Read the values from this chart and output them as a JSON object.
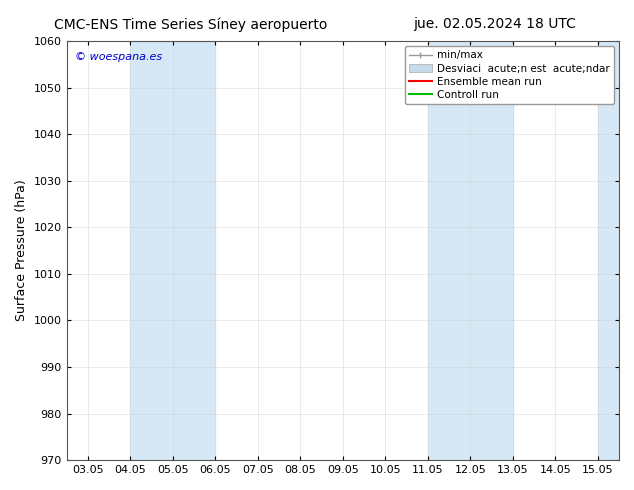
{
  "title_left": "CMC-ENS Time Series Síney aeropuerto",
  "title_right": "jue. 02.05.2024 18 UTC",
  "ylabel": "Surface Pressure (hPa)",
  "ylim": [
    970,
    1060
  ],
  "yticks": [
    970,
    980,
    990,
    1000,
    1010,
    1020,
    1030,
    1040,
    1050,
    1060
  ],
  "xtick_labels": [
    "03.05",
    "04.05",
    "05.05",
    "06.05",
    "07.05",
    "08.05",
    "09.05",
    "10.05",
    "11.05",
    "12.05",
    "13.05",
    "14.05",
    "15.05"
  ],
  "xtick_positions": [
    0,
    1,
    2,
    3,
    4,
    5,
    6,
    7,
    8,
    9,
    10,
    11,
    12
  ],
  "xlim": [
    -0.5,
    12.5
  ],
  "shaded_bands": [
    {
      "x_start": 1,
      "x_end": 3,
      "color": "#d6e8f5"
    },
    {
      "x_start": 8,
      "x_end": 10,
      "color": "#d6e8f5"
    },
    {
      "x_start": 12,
      "x_end": 12.5,
      "color": "#d6e8f5"
    }
  ],
  "watermark_text": "© woespana.es",
  "watermark_color": "#0000cc",
  "legend_labels": [
    "min/max",
    "Desviaci  acute;n est  acute;ndar",
    "Ensemble mean run",
    "Controll run"
  ],
  "legend_colors": [
    "#999999",
    "#c5daea",
    "#ff0000",
    "#00bb00"
  ],
  "bg_color": "#ffffff",
  "title_fontsize": 10,
  "axis_label_fontsize": 9,
  "tick_fontsize": 8,
  "legend_fontsize": 7.5
}
